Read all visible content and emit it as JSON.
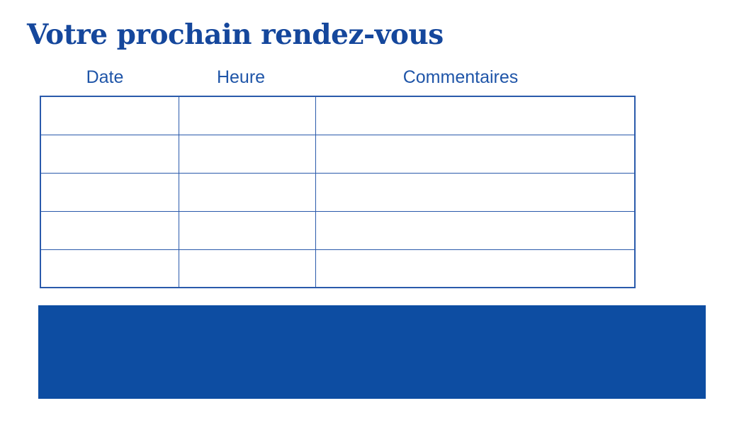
{
  "colors": {
    "accent": "#0d4da2",
    "title": "#15479c",
    "border": "#2a5aab",
    "header_text": "#1f55a8",
    "bg": "#ffffff"
  },
  "header": {
    "title": "Votre prochain rendez-vous"
  },
  "table": {
    "columns": [
      {
        "label": "Date"
      },
      {
        "label": "Heure"
      },
      {
        "label": "Commentaires"
      }
    ],
    "rows": [
      [
        "",
        "",
        ""
      ],
      [
        "",
        "",
        ""
      ],
      [
        "",
        "",
        ""
      ],
      [
        "",
        "",
        ""
      ],
      [
        "",
        "",
        ""
      ]
    ]
  },
  "footer": {
    "text": ""
  }
}
